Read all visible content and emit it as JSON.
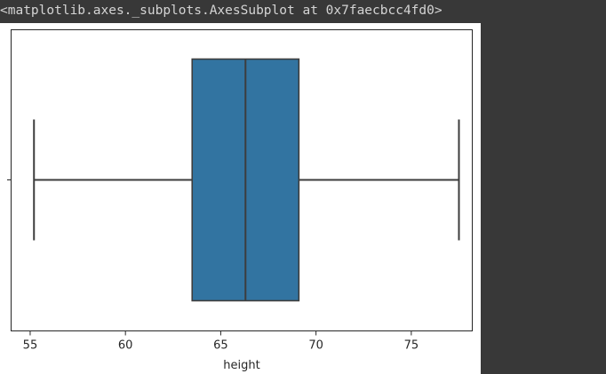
{
  "cell_output": {
    "repr_text": "<matplotlib.axes._subplots.AxesSubplot at 0x7faecbcc4fd0>"
  },
  "chart_data": {
    "type": "box",
    "orientation": "horizontal",
    "xlabel": "height",
    "ylabel": "",
    "xlim": [
      54.0,
      78.2
    ],
    "xticks": [
      55,
      60,
      65,
      70,
      75
    ],
    "xtick_labels": [
      "55",
      "60",
      "65",
      "70",
      "75"
    ],
    "box": {
      "whisker_low": 55.2,
      "q1": 63.5,
      "median": 66.3,
      "q3": 69.1,
      "whisker_high": 77.5
    },
    "box_color": "#3274a1",
    "line_color": "#3d3d3d",
    "grid": false,
    "legend": "none"
  }
}
